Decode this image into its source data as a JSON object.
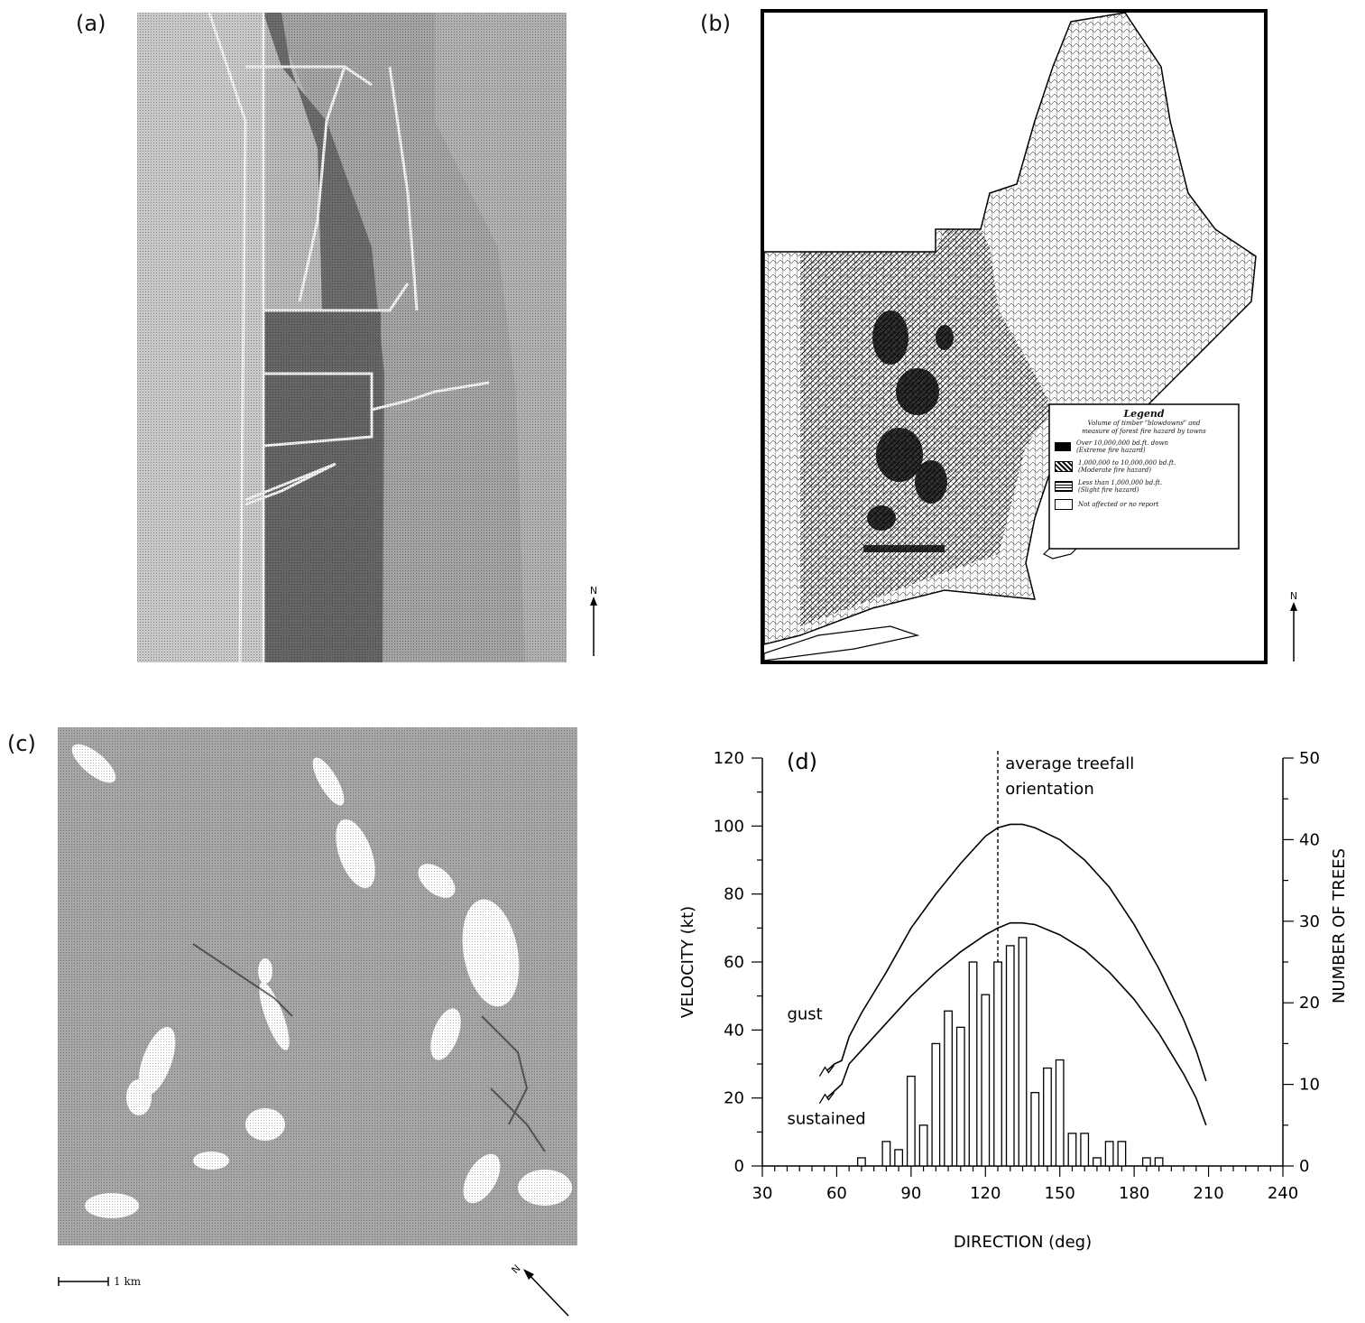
{
  "panels": {
    "a": {
      "label": "(a)",
      "north": "N"
    },
    "b": {
      "label": "(b)",
      "north": "N",
      "legend": {
        "title": "Legend",
        "subtitle_line1": "Volume of timber \"blowdowns\" and",
        "subtitle_line2": "measure of forest fire hazard by towns",
        "entries": [
          {
            "line1": "Over 10,000,000 bd.ft. down",
            "line2": "(Extreme fire hazard)"
          },
          {
            "line1": "1,000,000 to 10,000,000 bd.ft.",
            "line2": "(Moderate fire hazard)"
          },
          {
            "line1": "Less than 1,000,000 bd.ft.",
            "line2": "(Slight fire hazard)"
          },
          {
            "line1": "Not affected or no report",
            "line2": ""
          }
        ]
      }
    },
    "c": {
      "label": "(c)",
      "north": "N",
      "scale_label": "1 km"
    }
  },
  "chart_data": {
    "type": "bar",
    "panel_label": "(d)",
    "xlabel": "DIRECTION (deg)",
    "ylabel": "VELOCITY (kt)",
    "y2label": "NUMBER OF TREES",
    "xlim": [
      30,
      240
    ],
    "ylim": [
      0,
      120
    ],
    "y2lim": [
      0,
      50
    ],
    "xticks": [
      30,
      60,
      90,
      120,
      150,
      180,
      210,
      240
    ],
    "yticks": [
      0,
      20,
      40,
      60,
      80,
      100,
      120
    ],
    "y2ticks": [
      0,
      10,
      20,
      30,
      40,
      50
    ],
    "annotation_line1": "average treefall",
    "annotation_line2": "orientation",
    "treefall_direction": 125,
    "bars": {
      "name": "NUMBER OF TREES",
      "x": [
        70,
        80,
        85,
        90,
        95,
        100,
        105,
        110,
        115,
        120,
        125,
        130,
        135,
        140,
        145,
        150,
        155,
        160,
        165,
        170,
        175,
        185,
        190
      ],
      "values": [
        1,
        3,
        2,
        11,
        5,
        15,
        19,
        17,
        25,
        21,
        25,
        27,
        28,
        9,
        12,
        13,
        4,
        4,
        1,
        3,
        3,
        1,
        1
      ]
    },
    "series": [
      {
        "name": "gust",
        "x": [
          56,
          59,
          62,
          65,
          70,
          80,
          90,
          100,
          110,
          120,
          125,
          130,
          135,
          140,
          150,
          160,
          170,
          180,
          190,
          200,
          205,
          209
        ],
        "values": [
          28,
          30,
          31,
          38,
          45,
          57,
          70,
          80,
          89,
          97,
          99.5,
          100.5,
          100.5,
          99.5,
          96,
          90,
          82,
          71,
          58,
          43,
          34,
          25
        ]
      },
      {
        "name": "sustained",
        "x": [
          56,
          59,
          62,
          65,
          70,
          80,
          90,
          100,
          110,
          120,
          125,
          130,
          135,
          140,
          150,
          160,
          170,
          180,
          190,
          200,
          205,
          209
        ],
        "values": [
          20,
          22,
          24,
          30,
          34,
          42,
          50,
          57,
          63,
          68,
          70,
          71.5,
          71.5,
          71,
          68,
          63.5,
          57,
          49,
          39,
          27,
          20,
          12
        ]
      }
    ]
  }
}
